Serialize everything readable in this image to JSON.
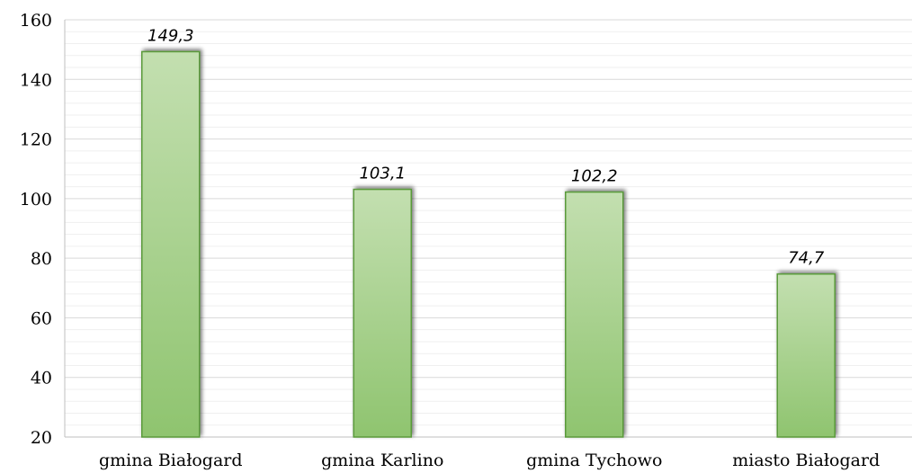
{
  "chart_data": {
    "type": "bar",
    "categories": [
      "gmina Białogard",
      "gmina Karlino",
      "gmina Tychowo",
      "miasto Białogard"
    ],
    "values": [
      149.3,
      103.1,
      102.2,
      74.7
    ],
    "data_labels": [
      "149,3",
      "103,1",
      "102,2",
      "74,7"
    ],
    "ylim": [
      20,
      160
    ],
    "yticks": [
      20,
      40,
      60,
      80,
      100,
      120,
      140,
      160
    ],
    "grid": true,
    "legend": "none",
    "colors": {
      "bar_fill_top": "#c3dfb0",
      "bar_fill_bottom": "#8fc46f",
      "bar_stroke": "#5a9a3a",
      "gridline": "#d9d9d9",
      "minor_gridline": "#efefef",
      "axis": "#bfbfbf"
    }
  }
}
